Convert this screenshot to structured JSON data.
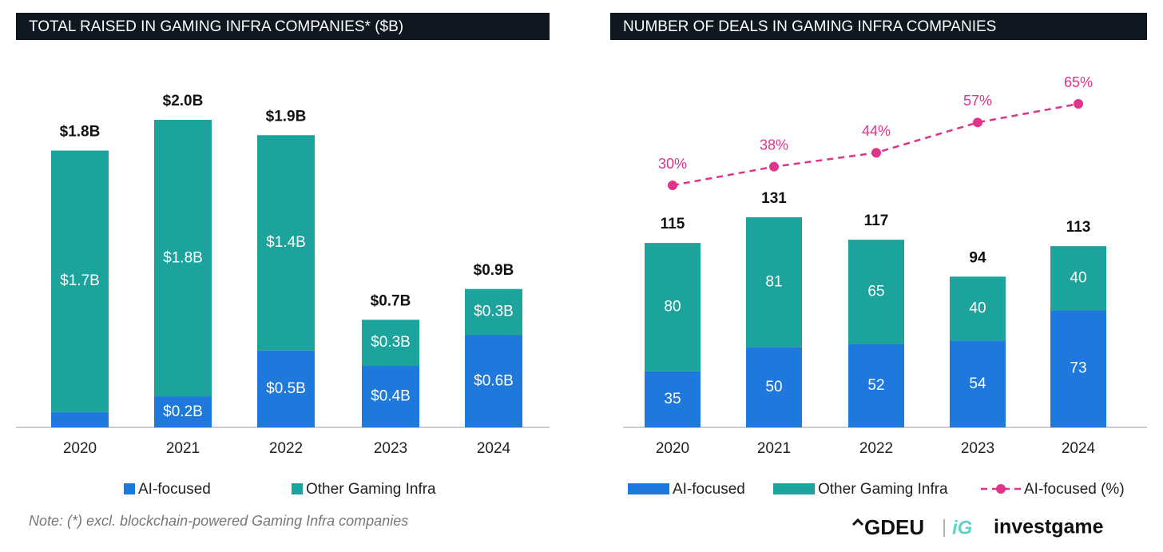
{
  "chart_data": [
    {
      "type": "bar",
      "title": "TOTAL RAISED IN GAMING INFRA COMPANIES* ($B)",
      "categories": [
        "2020",
        "2021",
        "2022",
        "2023",
        "2024"
      ],
      "series": [
        {
          "name": "AI-focused",
          "color": "#1f78dc",
          "values": [
            0.1,
            0.2,
            0.5,
            0.4,
            0.6
          ],
          "value_labels": [
            null,
            "$0.2B",
            "$0.5B",
            "$0.4B",
            "$0.6B"
          ]
        },
        {
          "name": "Other Gaming Infra",
          "color": "#1ba39c",
          "values": [
            1.7,
            1.8,
            1.4,
            0.3,
            0.3
          ],
          "value_labels": [
            "$1.7B",
            "$1.8B",
            "$1.4B",
            "$0.3B",
            "$0.3B"
          ]
        }
      ],
      "totals": [
        1.8,
        2.0,
        1.9,
        0.7,
        0.9
      ],
      "total_labels": [
        "$1.8B",
        "$2.0B",
        "$1.9B",
        "$0.7B",
        "$0.9B"
      ]
    },
    {
      "type": "bar",
      "title": "NUMBER OF DEALS IN GAMING INFRA COMPANIES",
      "categories": [
        "2020",
        "2021",
        "2022",
        "2023",
        "2024"
      ],
      "series": [
        {
          "name": "AI-focused",
          "color": "#1f78dc",
          "values": [
            35,
            50,
            52,
            54,
            73
          ]
        },
        {
          "name": "Other Gaming Infra",
          "color": "#1ba39c",
          "values": [
            80,
            81,
            65,
            40,
            40
          ]
        },
        {
          "name": "AI-focused (%)",
          "color": "#e0338a",
          "type": "line",
          "axis": "y2",
          "values": [
            30,
            38,
            44,
            57,
            65
          ],
          "value_labels": [
            "30%",
            "38%",
            "44%",
            "57%",
            "65%"
          ]
        }
      ],
      "totals": [
        115,
        131,
        117,
        94,
        113
      ]
    }
  ],
  "note": "Note: (*) excl. blockchain-powered Gaming Infra companies",
  "brands": [
    "GDEU",
    "iG",
    "investgame"
  ]
}
